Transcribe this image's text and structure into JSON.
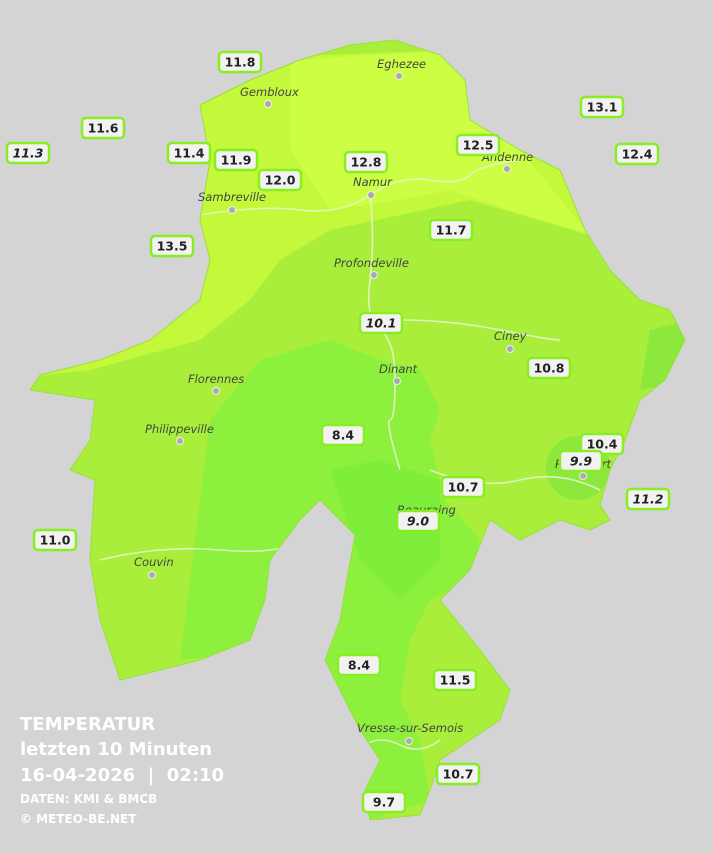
{
  "cities": [
    "Eghezee",
    "Gembloux",
    "Andenne",
    "Namur",
    "Sambreville",
    "Profondeville",
    "Ciney",
    "Dinant",
    "Florennes",
    "Philippeville",
    "Rochefort",
    "Beauraing",
    "Couvin",
    "Vresse-sur-Semois"
  ],
  "stations": [
    "11.8",
    "13.1",
    "11.6",
    "11.3",
    "11.4",
    "11.9",
    "12.8",
    "12.5",
    "12.4",
    "12.0",
    "11.7",
    "13.5",
    "10.1",
    "10.8",
    "8.4",
    "10.4",
    "9.9",
    "10.7",
    "11.2",
    "9.0",
    "11.0",
    "8.4",
    "11.5",
    "10.7",
    "9.7"
  ],
  "legend": {
    "title": "TEMPERATUR",
    "subtitle": "letzten 10 Minuten",
    "datetime": "16-04-2026  |  02:10",
    "source": "DATEN: KMI & BMCB",
    "copyright": "© METEO-BE.NET"
  }
}
